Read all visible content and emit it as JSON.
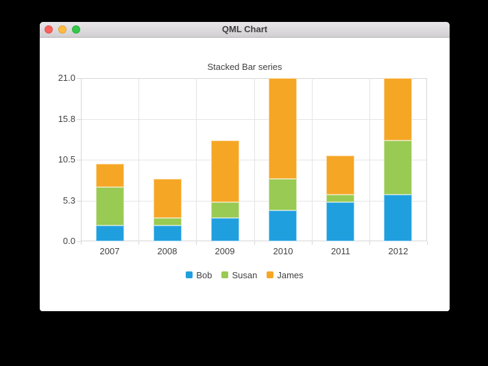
{
  "window": {
    "title": "QML Chart",
    "controls": {
      "close_color": "#fc615d",
      "minimize_color": "#fdbc40",
      "zoom_color": "#34c749"
    }
  },
  "chart_data": {
    "type": "bar",
    "stacked": true,
    "title": "Stacked Bar series",
    "categories": [
      "2007",
      "2008",
      "2009",
      "2010",
      "2011",
      "2012"
    ],
    "series": [
      {
        "name": "Bob",
        "color": "#209fdf",
        "values": [
          2,
          2,
          3,
          4,
          5,
          6
        ]
      },
      {
        "name": "Susan",
        "color": "#99ca53",
        "values": [
          5,
          1,
          2,
          4,
          1,
          7
        ]
      },
      {
        "name": "James",
        "color": "#f6a625",
        "values": [
          3,
          5,
          8,
          13,
          5,
          8
        ]
      }
    ],
    "ylim": [
      0,
      21
    ],
    "y_ticks": [
      {
        "value": 0,
        "label": "0.0"
      },
      {
        "value": 5.25,
        "label": "5.3"
      },
      {
        "value": 10.5,
        "label": "10.5"
      },
      {
        "value": 15.75,
        "label": "15.8"
      },
      {
        "value": 21,
        "label": "21.0"
      }
    ],
    "grid": true,
    "legend_position": "bottom",
    "bar_width_ratio": 0.49,
    "text_color": "#404040"
  }
}
